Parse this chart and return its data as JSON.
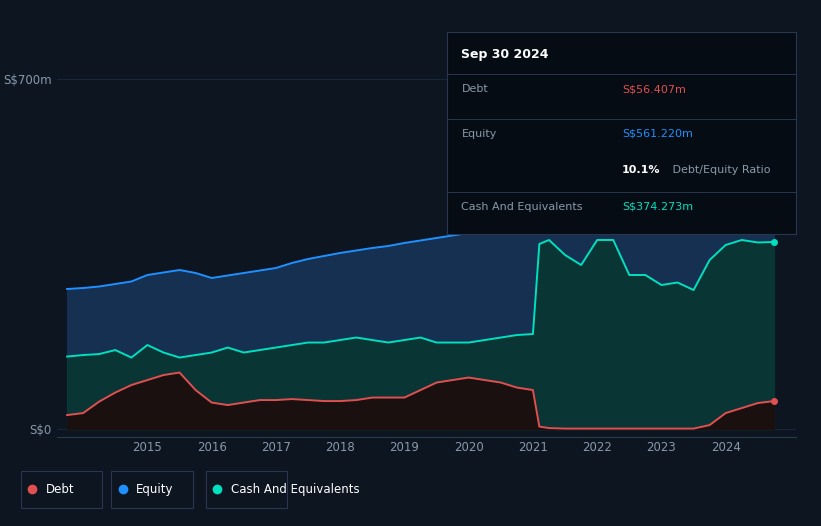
{
  "background_color": "#0c1520",
  "plot_bg_color": "#0c1520",
  "equity_color": "#1e90ff",
  "equity_fill": "#153050",
  "cash_color": "#00e0c0",
  "cash_fill": "#0a3535",
  "debt_color": "#e05050",
  "debt_fill": "#1a1010",
  "grid_color": "#1a2d3d",
  "x_ticks": [
    2015,
    2016,
    2017,
    2018,
    2019,
    2020,
    2021,
    2022,
    2023,
    2024
  ],
  "years": [
    2013.75,
    2014.0,
    2014.25,
    2014.5,
    2014.75,
    2015.0,
    2015.25,
    2015.5,
    2015.75,
    2016.0,
    2016.25,
    2016.5,
    2016.75,
    2017.0,
    2017.25,
    2017.5,
    2017.75,
    2018.0,
    2018.25,
    2018.5,
    2018.75,
    2019.0,
    2019.25,
    2019.5,
    2019.75,
    2020.0,
    2020.25,
    2020.5,
    2020.75,
    2021.0,
    2021.1,
    2021.25,
    2021.5,
    2021.75,
    2022.0,
    2022.25,
    2022.5,
    2022.75,
    2023.0,
    2023.25,
    2023.5,
    2023.75,
    2024.0,
    2024.25,
    2024.5,
    2024.75
  ],
  "equity": [
    280,
    282,
    285,
    290,
    295,
    308,
    313,
    318,
    312,
    302,
    307,
    312,
    317,
    322,
    332,
    340,
    346,
    352,
    357,
    362,
    366,
    372,
    377,
    382,
    387,
    392,
    402,
    412,
    418,
    420,
    555,
    575,
    568,
    563,
    592,
    602,
    582,
    572,
    552,
    557,
    542,
    552,
    557,
    562,
    566,
    561
  ],
  "cash": [
    145,
    148,
    150,
    158,
    143,
    168,
    153,
    143,
    148,
    153,
    163,
    153,
    158,
    163,
    168,
    173,
    173,
    178,
    183,
    178,
    173,
    178,
    183,
    173,
    173,
    173,
    178,
    183,
    188,
    190,
    370,
    378,
    348,
    328,
    378,
    378,
    308,
    308,
    288,
    293,
    278,
    338,
    368,
    378,
    373,
    374
  ],
  "debt": [
    28,
    32,
    55,
    73,
    88,
    98,
    108,
    113,
    78,
    53,
    48,
    53,
    58,
    58,
    60,
    58,
    56,
    56,
    58,
    63,
    63,
    63,
    78,
    93,
    98,
    103,
    98,
    93,
    83,
    78,
    5,
    2,
    1,
    1,
    1,
    1,
    1,
    1,
    1,
    1,
    1,
    8,
    32,
    42,
    52,
    56
  ],
  "ylim_max": 700,
  "xlim_min": 2013.6,
  "xlim_max": 2025.1,
  "ylabel_top": "S$700m",
  "ylabel_bot": "S$0",
  "tt_date": "Sep 30 2024",
  "tt_debt_label": "Debt",
  "tt_debt_val": "S$56.407m",
  "tt_equity_label": "Equity",
  "tt_equity_val": "S$561.220m",
  "tt_ratio_pct": "10.1%",
  "tt_ratio_label": " Debt/Equity Ratio",
  "tt_cash_label": "Cash And Equivalents",
  "tt_cash_val": "S$374.273m",
  "legend_labels": [
    "Debt",
    "Equity",
    "Cash And Equivalents"
  ],
  "legend_colors": [
    "#e05050",
    "#1e90ff",
    "#00e0c0"
  ]
}
